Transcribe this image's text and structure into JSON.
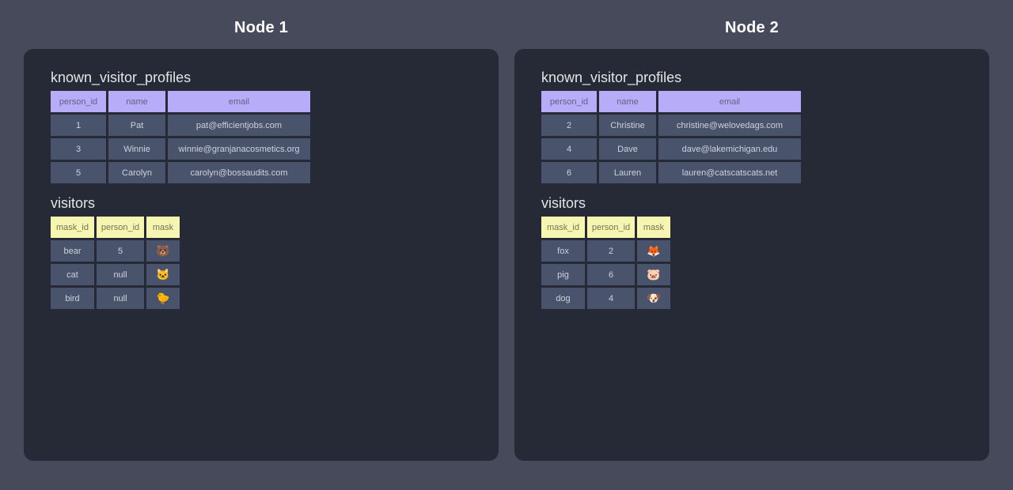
{
  "colors": {
    "page-bg": "#464A5A",
    "panel-bg": "#262A36",
    "cell-bg": "#49536C",
    "cell-text": "#CED2DA",
    "purple-header-bg": "#B7ACF8",
    "purple-header-text": "#655F85",
    "yellow-header-bg": "#F6F6B1",
    "yellow-header-text": "#73735B",
    "title-text": "#FFFFFF",
    "table-title-text": "#E4E5E9"
  },
  "nodes": [
    {
      "title": "Node 1",
      "tables": [
        {
          "name": "known_visitor_profiles",
          "columns": [
            "person_id",
            "name",
            "email"
          ],
          "rows": [
            [
              "1",
              "Pat",
              "pat@efficientjobs.com"
            ],
            [
              "3",
              "Winnie",
              "winnie@granjanacosmetics.org"
            ],
            [
              "5",
              "Carolyn",
              "carolyn@bossaudits.com"
            ]
          ]
        },
        {
          "name": "visitors",
          "columns": [
            "mask_id",
            "person_id",
            "mask"
          ],
          "rows": [
            [
              "bear",
              "5",
              "🐻"
            ],
            [
              "cat",
              "null",
              "🐱"
            ],
            [
              "bird",
              "null",
              "🐤"
            ]
          ]
        }
      ]
    },
    {
      "title": "Node 2",
      "tables": [
        {
          "name": "known_visitor_profiles",
          "columns": [
            "person_id",
            "name",
            "email"
          ],
          "rows": [
            [
              "2",
              "Christine",
              "christine@welovedags.com"
            ],
            [
              "4",
              "Dave",
              "dave@lakemichigan.edu"
            ],
            [
              "6",
              "Lauren",
              "lauren@catscatscats.net"
            ]
          ]
        },
        {
          "name": "visitors",
          "columns": [
            "mask_id",
            "person_id",
            "mask"
          ],
          "rows": [
            [
              "fox",
              "2",
              "🦊"
            ],
            [
              "pig",
              "6",
              "🐷"
            ],
            [
              "dog",
              "4",
              "🐶"
            ]
          ]
        }
      ]
    }
  ]
}
